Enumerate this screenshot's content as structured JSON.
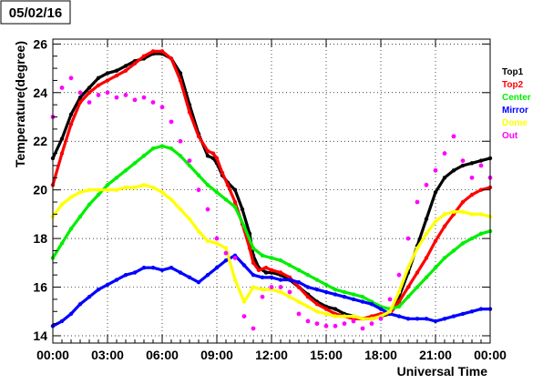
{
  "title": "05/02/16",
  "chart_data": {
    "type": "scatter",
    "xlabel": "Universal Time",
    "ylabel": "Temperature(degree)",
    "xlim": [
      0,
      24
    ],
    "ylim": [
      13.7,
      26.2
    ],
    "grid": true,
    "legend_position": "right",
    "x_ticks": [
      {
        "value": 0,
        "label": "00:00"
      },
      {
        "value": 3,
        "label": "03:00"
      },
      {
        "value": 6,
        "label": "06:00"
      },
      {
        "value": 9,
        "label": "09:00"
      },
      {
        "value": 12,
        "label": "12:00"
      },
      {
        "value": 15,
        "label": "15:00"
      },
      {
        "value": 18,
        "label": "18:00"
      },
      {
        "value": 21,
        "label": "21:00"
      },
      {
        "value": 24,
        "label": "00:00"
      }
    ],
    "y_ticks": [
      {
        "value": 14,
        "label": "14"
      },
      {
        "value": 16,
        "label": "16"
      },
      {
        "value": 18,
        "label": "18"
      },
      {
        "value": 20,
        "label": "20"
      },
      {
        "value": 22,
        "label": "22"
      },
      {
        "value": 24,
        "label": "24"
      },
      {
        "value": 26,
        "label": "26"
      }
    ],
    "series": [
      {
        "name": "Top1",
        "color": "#000000",
        "style": "line",
        "x": [
          0,
          0.5,
          1,
          1.5,
          2,
          2.5,
          3,
          3.5,
          4,
          4.5,
          5,
          5.5,
          6,
          6.5,
          7,
          7.5,
          8,
          8.5,
          8.8,
          9,
          9.3,
          9.6,
          10,
          10.4,
          10.8,
          11,
          11.3,
          11.7,
          12,
          12.5,
          13,
          13.5,
          14,
          14.5,
          15,
          15.5,
          16,
          16.5,
          17,
          17.5,
          18,
          18.5,
          19,
          19.5,
          20,
          20.5,
          21,
          21.5,
          22,
          22.5,
          23,
          23.5,
          24
        ],
        "y": [
          21.3,
          22.1,
          23.1,
          23.8,
          24.2,
          24.6,
          24.8,
          24.9,
          25.1,
          25.3,
          25.4,
          25.6,
          25.6,
          25.4,
          24.8,
          23.5,
          22.3,
          21.4,
          21.3,
          21.1,
          20.6,
          20.3,
          20.0,
          19.2,
          18.2,
          17.3,
          16.8,
          16.6,
          16.6,
          16.5,
          16.3,
          16.0,
          15.7,
          15.4,
          15.2,
          15.1,
          14.9,
          14.8,
          14.7,
          14.7,
          14.8,
          14.9,
          15.6,
          16.6,
          17.7,
          18.8,
          19.9,
          20.5,
          20.8,
          21.0,
          21.1,
          21.2,
          21.3
        ]
      },
      {
        "name": "Top2",
        "color": "#ff0000",
        "style": "line",
        "x": [
          0,
          0.5,
          1,
          1.5,
          2,
          2.5,
          3,
          3.5,
          4,
          4.5,
          5,
          5.5,
          6,
          6.5,
          7,
          7.5,
          8,
          8.5,
          8.8,
          9,
          9.3,
          9.6,
          10,
          10.4,
          10.8,
          11,
          11.3,
          11.7,
          12,
          12.5,
          13,
          13.5,
          14,
          14.5,
          15,
          15.5,
          16,
          16.5,
          17,
          17.5,
          18,
          18.5,
          19,
          19.5,
          20,
          20.5,
          21,
          21.5,
          22,
          22.5,
          23,
          23.5,
          24
        ],
        "y": [
          20.2,
          21.5,
          22.7,
          23.6,
          24.0,
          24.3,
          24.5,
          24.7,
          24.9,
          25.2,
          25.5,
          25.7,
          25.7,
          25.4,
          24.5,
          23.2,
          22.2,
          21.6,
          21.5,
          21.3,
          20.7,
          20.2,
          19.5,
          18.6,
          17.6,
          17.0,
          16.7,
          16.8,
          16.7,
          16.6,
          16.4,
          16.0,
          15.6,
          15.3,
          15.1,
          14.9,
          14.8,
          14.7,
          14.7,
          14.8,
          14.9,
          14.9,
          15.4,
          16.0,
          16.6,
          17.2,
          17.9,
          18.5,
          19.0,
          19.5,
          19.8,
          20.0,
          20.1
        ]
      },
      {
        "name": "Center",
        "color": "#00ee00",
        "style": "line",
        "x": [
          0,
          0.5,
          1,
          1.5,
          2,
          2.5,
          3,
          3.5,
          4,
          4.5,
          5,
          5.5,
          6,
          6.5,
          7,
          7.5,
          8,
          8.5,
          9,
          9.5,
          10,
          10.5,
          11,
          11.5,
          12,
          12.5,
          13,
          13.5,
          14,
          14.5,
          15,
          15.5,
          16,
          16.5,
          17,
          17.5,
          18,
          18.5,
          19,
          19.5,
          20,
          20.5,
          21,
          21.5,
          22,
          22.5,
          23,
          23.5,
          24
        ],
        "y": [
          17.2,
          17.8,
          18.4,
          18.9,
          19.4,
          19.8,
          20.2,
          20.5,
          20.8,
          21.1,
          21.4,
          21.7,
          21.8,
          21.7,
          21.4,
          21.0,
          20.6,
          20.2,
          19.9,
          19.6,
          19.3,
          18.5,
          17.6,
          17.3,
          17.2,
          17.1,
          16.9,
          16.7,
          16.5,
          16.3,
          16.1,
          15.9,
          15.8,
          15.7,
          15.6,
          15.4,
          15.2,
          15.1,
          15.2,
          15.6,
          16.0,
          16.4,
          16.8,
          17.2,
          17.5,
          17.8,
          18.0,
          18.2,
          18.3
        ]
      },
      {
        "name": "Mirror",
        "color": "#0000ff",
        "style": "line",
        "x": [
          0,
          0.5,
          1,
          1.5,
          2,
          2.5,
          3,
          3.5,
          4,
          4.5,
          5,
          5.5,
          6,
          6.5,
          7,
          7.5,
          8,
          8.5,
          9,
          9.5,
          10,
          10.5,
          11,
          11.5,
          12,
          12.5,
          13,
          13.5,
          14,
          14.5,
          15,
          15.5,
          16,
          16.5,
          17,
          17.5,
          18,
          18.5,
          19,
          19.5,
          20,
          20.5,
          21,
          21.5,
          22,
          22.5,
          23,
          23.5,
          24
        ],
        "y": [
          14.4,
          14.6,
          14.9,
          15.3,
          15.6,
          15.9,
          16.1,
          16.3,
          16.5,
          16.6,
          16.8,
          16.8,
          16.7,
          16.8,
          16.6,
          16.4,
          16.2,
          16.5,
          16.8,
          17.1,
          17.3,
          16.9,
          16.5,
          16.4,
          16.4,
          16.3,
          16.3,
          16.2,
          16.0,
          15.9,
          15.8,
          15.7,
          15.6,
          15.5,
          15.4,
          15.3,
          15.1,
          14.9,
          14.8,
          14.7,
          14.7,
          14.7,
          14.6,
          14.7,
          14.8,
          14.9,
          15.0,
          15.1,
          15.1
        ]
      },
      {
        "name": "Dome",
        "color": "#ffff00",
        "style": "line",
        "x": [
          0,
          0.5,
          1,
          1.5,
          2,
          2.5,
          3,
          3.5,
          4,
          4.5,
          5,
          5.5,
          6,
          6.5,
          7,
          7.5,
          8,
          8.5,
          9,
          9.5,
          10,
          10.5,
          11,
          11.5,
          12,
          12.5,
          13,
          13.5,
          14,
          14.5,
          15,
          15.5,
          16,
          16.5,
          17,
          17.5,
          18,
          18.5,
          19,
          19.5,
          20,
          20.5,
          21,
          21.5,
          22,
          22.5,
          23,
          23.5,
          24
        ],
        "y": [
          18.9,
          19.4,
          19.7,
          19.9,
          20.0,
          20.0,
          20.0,
          20.0,
          20.1,
          20.1,
          20.2,
          20.1,
          19.9,
          19.6,
          19.2,
          18.8,
          18.3,
          17.9,
          17.8,
          17.6,
          16.3,
          15.4,
          16.0,
          15.9,
          15.9,
          15.8,
          15.6,
          15.4,
          15.2,
          15.0,
          14.9,
          14.8,
          14.8,
          14.8,
          14.7,
          14.7,
          14.8,
          15.0,
          15.8,
          16.8,
          17.6,
          18.2,
          18.7,
          19.0,
          19.1,
          19.1,
          19.0,
          19.0,
          18.9
        ]
      },
      {
        "name": "Out",
        "color": "#ff00ff",
        "style": "scatter",
        "x": [
          0,
          0.5,
          1,
          1.5,
          2,
          2.5,
          3,
          3.5,
          4,
          4.5,
          5,
          5.5,
          6,
          6.5,
          7,
          7.5,
          8,
          8.5,
          9,
          9.5,
          10,
          10.5,
          11,
          11.5,
          12,
          12.5,
          13,
          13.5,
          14,
          14.5,
          15,
          15.5,
          16,
          16.5,
          17,
          17.5,
          18,
          18.5,
          19,
          19.5,
          20,
          20.5,
          21,
          21.5,
          22,
          22.5,
          23,
          23.5,
          24
        ],
        "y": [
          23.0,
          24.2,
          24.6,
          24.0,
          23.6,
          23.9,
          24.0,
          23.8,
          23.9,
          23.7,
          23.8,
          23.6,
          23.4,
          22.8,
          22.0,
          21.2,
          20.0,
          19.2,
          18.0,
          17.4,
          17.2,
          14.8,
          14.3,
          15.6,
          16.0,
          16.0,
          15.8,
          14.9,
          14.6,
          14.5,
          14.4,
          14.4,
          14.5,
          14.6,
          14.3,
          14.5,
          14.7,
          15.5,
          16.5,
          18.0,
          19.5,
          20.2,
          20.8,
          21.5,
          22.2,
          21.2,
          20.5,
          21.0,
          20.5
        ]
      }
    ]
  }
}
